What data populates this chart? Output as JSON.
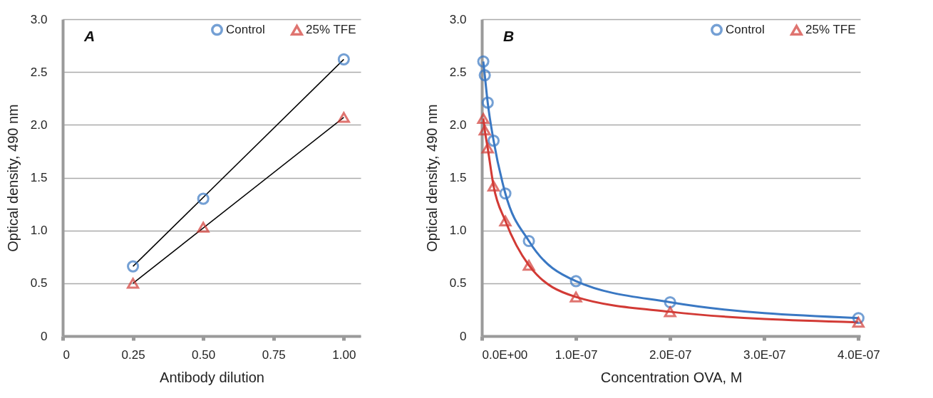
{
  "chart_data": [
    {
      "type": "scatter",
      "title": "A",
      "xlabel": "Antibody dilution",
      "ylabel": "Optical density, 490 nm",
      "xlim": [
        0,
        1.06
      ],
      "xticks": [
        0,
        0.25,
        {
          "value": 0.5,
          "label": "0.50"
        },
        0.75,
        {
          "value": 1,
          "label": "1.00"
        }
      ],
      "ylim": [
        0,
        3
      ],
      "yticks": [
        0,
        0.5,
        {
          "value": 1,
          "label": "1.0"
        },
        1.5,
        {
          "value": 2,
          "label": "2.0"
        },
        2.5,
        {
          "value": 3,
          "label": "3.0"
        }
      ],
      "grid": "y",
      "legend": "top right",
      "series": [
        {
          "type": "line",
          "color": "#000000",
          "marker": "none",
          "x": [
            0.25,
            1.0
          ],
          "values": [
            0.66,
            2.62
          ]
        },
        {
          "type": "line",
          "color": "#000000",
          "marker": "none",
          "x": [
            0.25,
            1.0
          ],
          "values": [
            0.5,
            2.07
          ]
        },
        {
          "name": "Control",
          "color": "#3a78c3",
          "marker": "circle",
          "x": [
            0.25,
            0.5,
            1.0
          ],
          "values": [
            0.66,
            1.3,
            2.62
          ]
        },
        {
          "name": "25% TFE",
          "color": "#d23a35",
          "marker": "triangle",
          "x": [
            0.25,
            0.5,
            1.0
          ],
          "values": [
            0.5,
            1.03,
            2.07
          ]
        }
      ]
    },
    {
      "type": "line",
      "title": "B",
      "xlabel": "Concentration OVA, M",
      "ylabel": "Optical density, 490 nm",
      "xlim": [
        0,
        4.02e-07
      ],
      "xticks": [
        {
          "value": 0,
          "label": "0.0E+00"
        },
        {
          "value": 1e-07,
          "label": "1.0E-07"
        },
        {
          "value": 2e-07,
          "label": "2.0E-07"
        },
        {
          "value": 3e-07,
          "label": "3.0E-07"
        },
        {
          "value": 4e-07,
          "label": "4.0E-07"
        }
      ],
      "ylim": [
        0,
        3
      ],
      "yticks": [
        0,
        0.5,
        {
          "value": 1,
          "label": "1.0"
        },
        1.5,
        {
          "value": 2,
          "label": "2.0"
        },
        2.5,
        {
          "value": 3,
          "label": "3.0"
        }
      ],
      "grid": "y",
      "legend": "top right",
      "series": [
        {
          "name": "Control",
          "color": "#3a78c3",
          "marker": "circle",
          "x": [
            1.56e-09,
            3.13e-09,
            6.25e-09,
            1.25e-08,
            2.5e-08,
            5e-08,
            1e-07,
            2e-07,
            4e-07
          ],
          "values": [
            2.6,
            2.47,
            2.21,
            1.85,
            1.35,
            0.9,
            0.52,
            0.32,
            0.17
          ]
        },
        {
          "name": "25% TFE",
          "color": "#d23a35",
          "marker": "triangle",
          "x": [
            1.56e-09,
            3.13e-09,
            6.25e-09,
            1.25e-08,
            2.5e-08,
            5e-08,
            1e-07,
            2e-07,
            4e-07
          ],
          "values": [
            2.06,
            1.95,
            1.78,
            1.42,
            1.09,
            0.67,
            0.37,
            0.23,
            0.13
          ]
        }
      ]
    }
  ]
}
